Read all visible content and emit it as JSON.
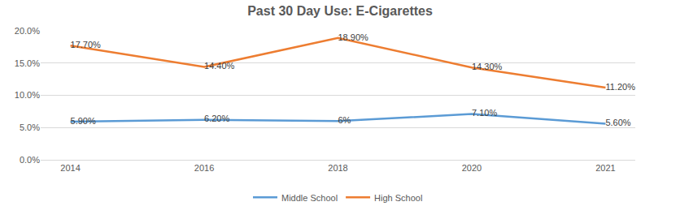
{
  "chart_data": {
    "type": "line",
    "title": "Past 30 Day Use: E-Cigarettes",
    "categories": [
      "2014",
      "2016",
      "2018",
      "2020",
      "2021"
    ],
    "series": [
      {
        "name": "Middle School",
        "color": "#5b9bd5",
        "values": [
          5.9,
          6.2,
          6,
          7.1,
          5.6
        ],
        "value_labels": [
          "5.90%",
          "6.20%",
          "6%",
          "7.10%",
          "5.60%"
        ]
      },
      {
        "name": "High School",
        "color": "#ed7d31",
        "values": [
          17.7,
          14.4,
          18.9,
          14.3,
          11.2
        ],
        "value_labels": [
          "17.70%",
          "14.40%",
          "18.90%",
          "14.30%",
          "11.20%"
        ]
      }
    ],
    "ylim": [
      0,
      20
    ],
    "yticks": [
      {
        "value": 0,
        "label": "0.0%"
      },
      {
        "value": 5,
        "label": "5.0%"
      },
      {
        "value": 10,
        "label": "10.0%"
      },
      {
        "value": 15,
        "label": "15.0%"
      },
      {
        "value": 20,
        "label": "20.0%"
      }
    ],
    "grid": true,
    "legend": "bottom",
    "data_labels": true
  }
}
